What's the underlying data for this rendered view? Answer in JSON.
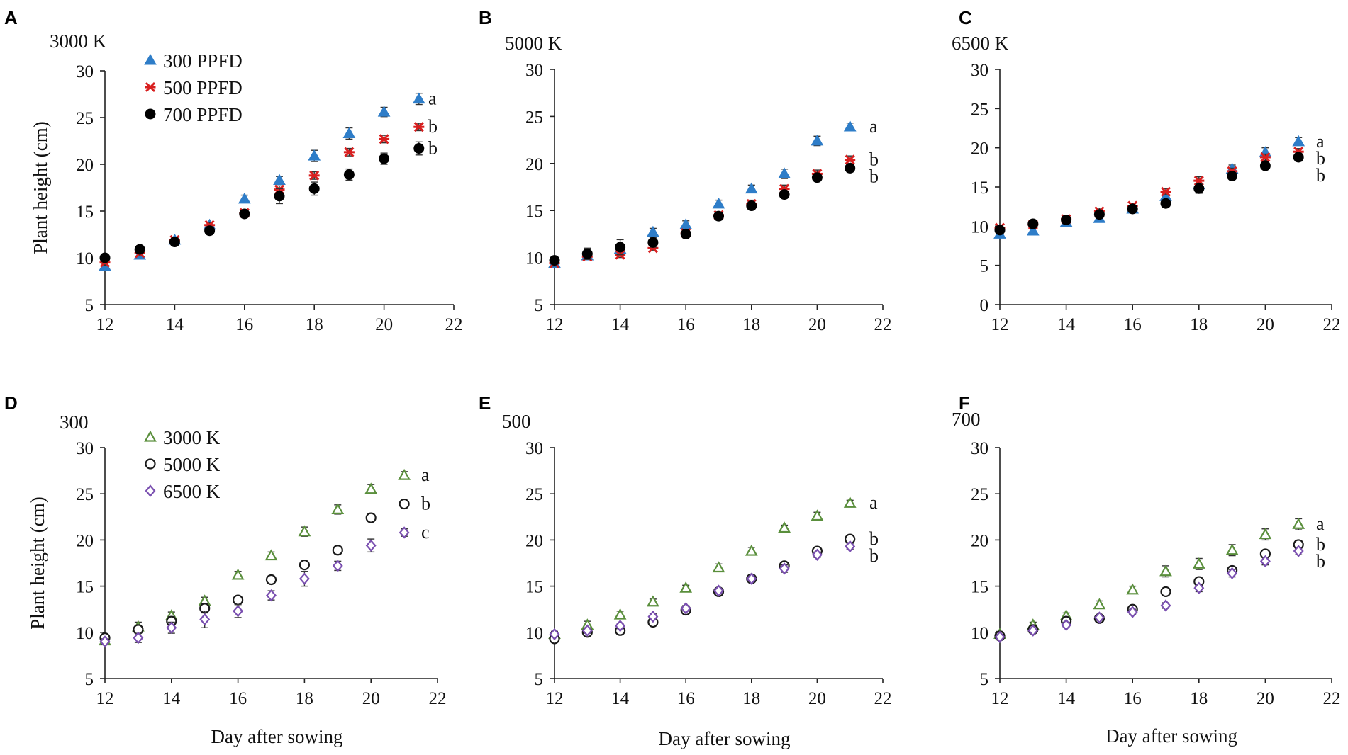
{
  "figure": {
    "colors": {
      "ppfd_300": "#2e7dc8",
      "ppfd_500": "#d81f1f",
      "ppfd_700": "#000000",
      "k_3000": "#5a8f3c",
      "k_5000": "#1a1a1a",
      "k_6500": "#7a4fb0"
    },
    "common": {
      "ylabel": "Plant height (cm)",
      "xlabel": "Day after sowing"
    }
  },
  "chart_data": [
    {
      "panel": "A",
      "type": "scatter",
      "title": "3000 K",
      "xlabel": "",
      "ylabel": "Plant height (cm)",
      "xlim": [
        12,
        22
      ],
      "ylim": [
        5,
        30
      ],
      "xticks": [
        12,
        14,
        16,
        18,
        20,
        22
      ],
      "yticks": [
        5,
        10,
        15,
        20,
        25,
        30
      ],
      "x": [
        12,
        13,
        14,
        15,
        16,
        17,
        18,
        19,
        20,
        21
      ],
      "legend": true,
      "series": [
        {
          "name": "300 PPFD",
          "marker": "triangle-filled",
          "color_key": "ppfd_300",
          "values": [
            9.1,
            10.3,
            11.9,
            13.5,
            16.3,
            18.3,
            20.9,
            23.3,
            25.6,
            27.0
          ],
          "errors": [
            0.3,
            0.3,
            0.3,
            0.3,
            0.4,
            0.4,
            0.6,
            0.6,
            0.5,
            0.6
          ]
        },
        {
          "name": "500 PPFD",
          "marker": "asterisk",
          "color_key": "ppfd_500",
          "values": [
            9.5,
            10.5,
            11.9,
            13.5,
            14.8,
            17.3,
            18.8,
            21.3,
            22.7,
            24.0
          ],
          "errors": [
            0.3,
            0.3,
            0.3,
            0.3,
            0.3,
            0.4,
            0.4,
            0.4,
            0.4,
            0.4
          ]
        },
        {
          "name": "700 PPFD",
          "marker": "circle-filled",
          "color_key": "ppfd_700",
          "values": [
            10.0,
            10.9,
            11.7,
            12.9,
            14.7,
            16.6,
            17.4,
            18.9,
            20.6,
            21.7
          ],
          "errors": [
            0.3,
            0.4,
            0.4,
            0.3,
            0.3,
            0.8,
            0.7,
            0.6,
            0.6,
            0.7
          ]
        }
      ],
      "letters": [
        "a",
        "b",
        "b"
      ]
    },
    {
      "panel": "B",
      "type": "scatter",
      "title": "5000 K",
      "xlabel": "",
      "ylabel": "",
      "xlim": [
        12,
        22
      ],
      "ylim": [
        5,
        30
      ],
      "xticks": [
        12,
        14,
        16,
        18,
        20,
        22
      ],
      "yticks": [
        5,
        10,
        15,
        20,
        25,
        30
      ],
      "x": [
        12,
        13,
        14,
        15,
        16,
        17,
        18,
        19,
        20,
        21
      ],
      "legend": false,
      "series": [
        {
          "name": "300 PPFD",
          "marker": "triangle-filled",
          "color_key": "ppfd_300",
          "values": [
            9.4,
            10.2,
            10.9,
            12.7,
            13.5,
            15.7,
            17.3,
            18.9,
            22.4,
            23.9
          ],
          "errors": [
            0.3,
            0.3,
            0.3,
            0.4,
            0.4,
            0.4,
            0.4,
            0.5,
            0.5,
            0.4
          ]
        },
        {
          "name": "500 PPFD",
          "marker": "asterisk",
          "color_key": "ppfd_500",
          "values": [
            9.4,
            10.1,
            10.3,
            11.0,
            12.6,
            14.5,
            15.7,
            17.3,
            18.9,
            20.4
          ],
          "errors": [
            0.3,
            0.3,
            0.3,
            0.3,
            0.3,
            0.3,
            0.4,
            0.4,
            0.4,
            0.4
          ]
        },
        {
          "name": "700 PPFD",
          "marker": "circle-filled",
          "color_key": "ppfd_700",
          "values": [
            9.7,
            10.4,
            11.1,
            11.6,
            12.5,
            14.4,
            15.5,
            16.7,
            18.5,
            19.5
          ],
          "errors": [
            0.3,
            0.6,
            0.8,
            0.5,
            0.4,
            0.4,
            0.4,
            0.4,
            0.3,
            0.4
          ]
        }
      ],
      "letters": [
        "a",
        "b",
        "b"
      ]
    },
    {
      "panel": "C",
      "type": "scatter",
      "title": "6500 K",
      "xlabel": "",
      "ylabel": "",
      "xlim": [
        12,
        22
      ],
      "ylim": [
        0,
        30
      ],
      "xticks": [
        12,
        14,
        16,
        18,
        20,
        22
      ],
      "yticks": [
        0,
        5,
        10,
        15,
        20,
        25,
        30
      ],
      "x": [
        12,
        13,
        14,
        15,
        16,
        17,
        18,
        19,
        20,
        21
      ],
      "legend": false,
      "series": [
        {
          "name": "300 PPFD",
          "marker": "triangle-filled",
          "color_key": "ppfd_300",
          "values": [
            9.0,
            9.4,
            10.5,
            11.0,
            12.2,
            13.8,
            15.3,
            17.3,
            19.4,
            20.8
          ],
          "errors": [
            0.3,
            0.3,
            0.3,
            0.4,
            0.3,
            0.5,
            0.5,
            0.5,
            0.6,
            0.5
          ]
        },
        {
          "name": "500 PPFD",
          "marker": "asterisk",
          "color_key": "ppfd_500",
          "values": [
            9.8,
            10.2,
            10.9,
            11.9,
            12.6,
            14.4,
            15.8,
            17.0,
            18.8,
            19.5
          ],
          "errors": [
            0.3,
            0.3,
            0.3,
            0.4,
            0.3,
            0.4,
            0.5,
            0.4,
            0.4,
            0.4
          ]
        },
        {
          "name": "700 PPFD",
          "marker": "circle-filled",
          "color_key": "ppfd_700",
          "values": [
            9.5,
            10.3,
            10.8,
            11.5,
            12.2,
            12.9,
            14.8,
            16.4,
            17.7,
            18.8
          ],
          "errors": [
            0.5,
            0.3,
            0.3,
            0.4,
            0.3,
            0.4,
            0.6,
            0.4,
            0.4,
            0.5
          ]
        }
      ],
      "letters": [
        "a",
        "b",
        "b"
      ]
    },
    {
      "panel": "D",
      "type": "scatter",
      "title": "300",
      "xlabel": "Day after sowing",
      "ylabel": "Plant height (cm)",
      "xlim": [
        12,
        22
      ],
      "ylim": [
        5,
        30
      ],
      "xticks": [
        12,
        14,
        16,
        18,
        20,
        22
      ],
      "yticks": [
        5,
        10,
        15,
        20,
        25,
        30
      ],
      "x": [
        12,
        13,
        14,
        15,
        16,
        17,
        18,
        19,
        20,
        21
      ],
      "legend": true,
      "series": [
        {
          "name": "3000 K",
          "marker": "triangle-open",
          "color_key": "k_3000",
          "values": [
            9.1,
            10.6,
            11.8,
            13.4,
            16.2,
            18.3,
            20.9,
            23.3,
            25.5,
            27.0
          ],
          "errors": [
            0.3,
            0.5,
            0.4,
            0.4,
            0.4,
            0.4,
            0.5,
            0.5,
            0.5,
            0.4
          ]
        },
        {
          "name": "5000 K",
          "marker": "circle-open",
          "color_key": "k_5000",
          "values": [
            9.4,
            10.3,
            11.2,
            12.6,
            13.5,
            15.7,
            17.3,
            18.9,
            22.4,
            23.9
          ],
          "errors": [
            0.3,
            0.4,
            0.5,
            0.5,
            0.4,
            0.4,
            0.4,
            0.4,
            0.4,
            0.4
          ]
        },
        {
          "name": "6500 K",
          "marker": "diamond-open",
          "color_key": "k_6500",
          "values": [
            9.0,
            9.4,
            10.5,
            11.4,
            12.3,
            14.0,
            15.8,
            17.2,
            19.4,
            20.8
          ],
          "errors": [
            0.3,
            0.5,
            0.6,
            0.9,
            0.7,
            0.5,
            0.8,
            0.5,
            0.7,
            0.4
          ]
        }
      ],
      "letters": [
        "a",
        "b",
        "c"
      ]
    },
    {
      "panel": "E",
      "type": "scatter",
      "title": "500",
      "xlabel": "Day after sowing",
      "ylabel": "",
      "xlim": [
        12,
        22
      ],
      "ylim": [
        5,
        30
      ],
      "xticks": [
        12,
        14,
        16,
        18,
        20,
        22
      ],
      "yticks": [
        5,
        10,
        15,
        20,
        25,
        30
      ],
      "x": [
        12,
        13,
        14,
        15,
        16,
        17,
        18,
        19,
        20,
        21
      ],
      "legend": false,
      "series": [
        {
          "name": "3000 K",
          "marker": "triangle-open",
          "color_key": "k_3000",
          "values": [
            9.8,
            10.8,
            11.9,
            13.3,
            14.8,
            17.0,
            18.8,
            21.3,
            22.6,
            24.0
          ],
          "errors": [
            0.3,
            0.4,
            0.4,
            0.3,
            0.3,
            0.4,
            0.4,
            0.3,
            0.4,
            0.3
          ]
        },
        {
          "name": "5000 K",
          "marker": "circle-open",
          "color_key": "k_5000",
          "values": [
            9.3,
            10.0,
            10.2,
            11.1,
            12.4,
            14.4,
            15.8,
            17.2,
            18.8,
            20.1
          ],
          "errors": [
            0.3,
            0.3,
            0.3,
            0.3,
            0.3,
            0.4,
            0.3,
            0.3,
            0.3,
            0.4
          ]
        },
        {
          "name": "6500 K",
          "marker": "diamond-open",
          "color_key": "k_6500",
          "values": [
            9.8,
            10.2,
            10.7,
            11.7,
            12.6,
            14.5,
            15.8,
            16.9,
            18.4,
            19.3
          ],
          "errors": [
            0.3,
            0.3,
            0.3,
            0.3,
            0.3,
            0.3,
            0.3,
            0.4,
            0.3,
            0.3
          ]
        }
      ],
      "letters": [
        "a",
        "b",
        "b"
      ]
    },
    {
      "panel": "F",
      "type": "scatter",
      "title": "700",
      "xlabel": "Day after sowing",
      "ylabel": "",
      "xlim": [
        12,
        22
      ],
      "ylim": [
        5,
        30
      ],
      "xticks": [
        12,
        14,
        16,
        18,
        20,
        22
      ],
      "yticks": [
        5,
        10,
        15,
        20,
        25,
        30
      ],
      "x": [
        12,
        13,
        14,
        15,
        16,
        17,
        18,
        19,
        20,
        21
      ],
      "legend": false,
      "series": [
        {
          "name": "3000 K",
          "marker": "triangle-open",
          "color_key": "k_3000",
          "values": [
            9.8,
            10.8,
            11.8,
            13.0,
            14.6,
            16.6,
            17.4,
            18.9,
            20.6,
            21.7
          ],
          "errors": [
            0.3,
            0.3,
            0.3,
            0.4,
            0.4,
            0.6,
            0.6,
            0.6,
            0.6,
            0.6
          ]
        },
        {
          "name": "5000 K",
          "marker": "circle-open",
          "color_key": "k_5000",
          "values": [
            9.6,
            10.3,
            11.2,
            11.5,
            12.5,
            14.4,
            15.5,
            16.7,
            18.5,
            19.5
          ],
          "errors": [
            0.3,
            0.3,
            0.3,
            0.3,
            0.3,
            0.3,
            0.3,
            0.3,
            0.3,
            0.4
          ]
        },
        {
          "name": "6500 K",
          "marker": "diamond-open",
          "color_key": "k_6500",
          "values": [
            9.5,
            10.2,
            10.8,
            11.6,
            12.2,
            12.9,
            14.8,
            16.4,
            17.7,
            18.8
          ],
          "errors": [
            0.3,
            0.3,
            0.3,
            0.3,
            0.3,
            0.3,
            0.4,
            0.4,
            0.4,
            0.4
          ]
        }
      ],
      "letters": [
        "a",
        "b",
        "b"
      ]
    }
  ]
}
